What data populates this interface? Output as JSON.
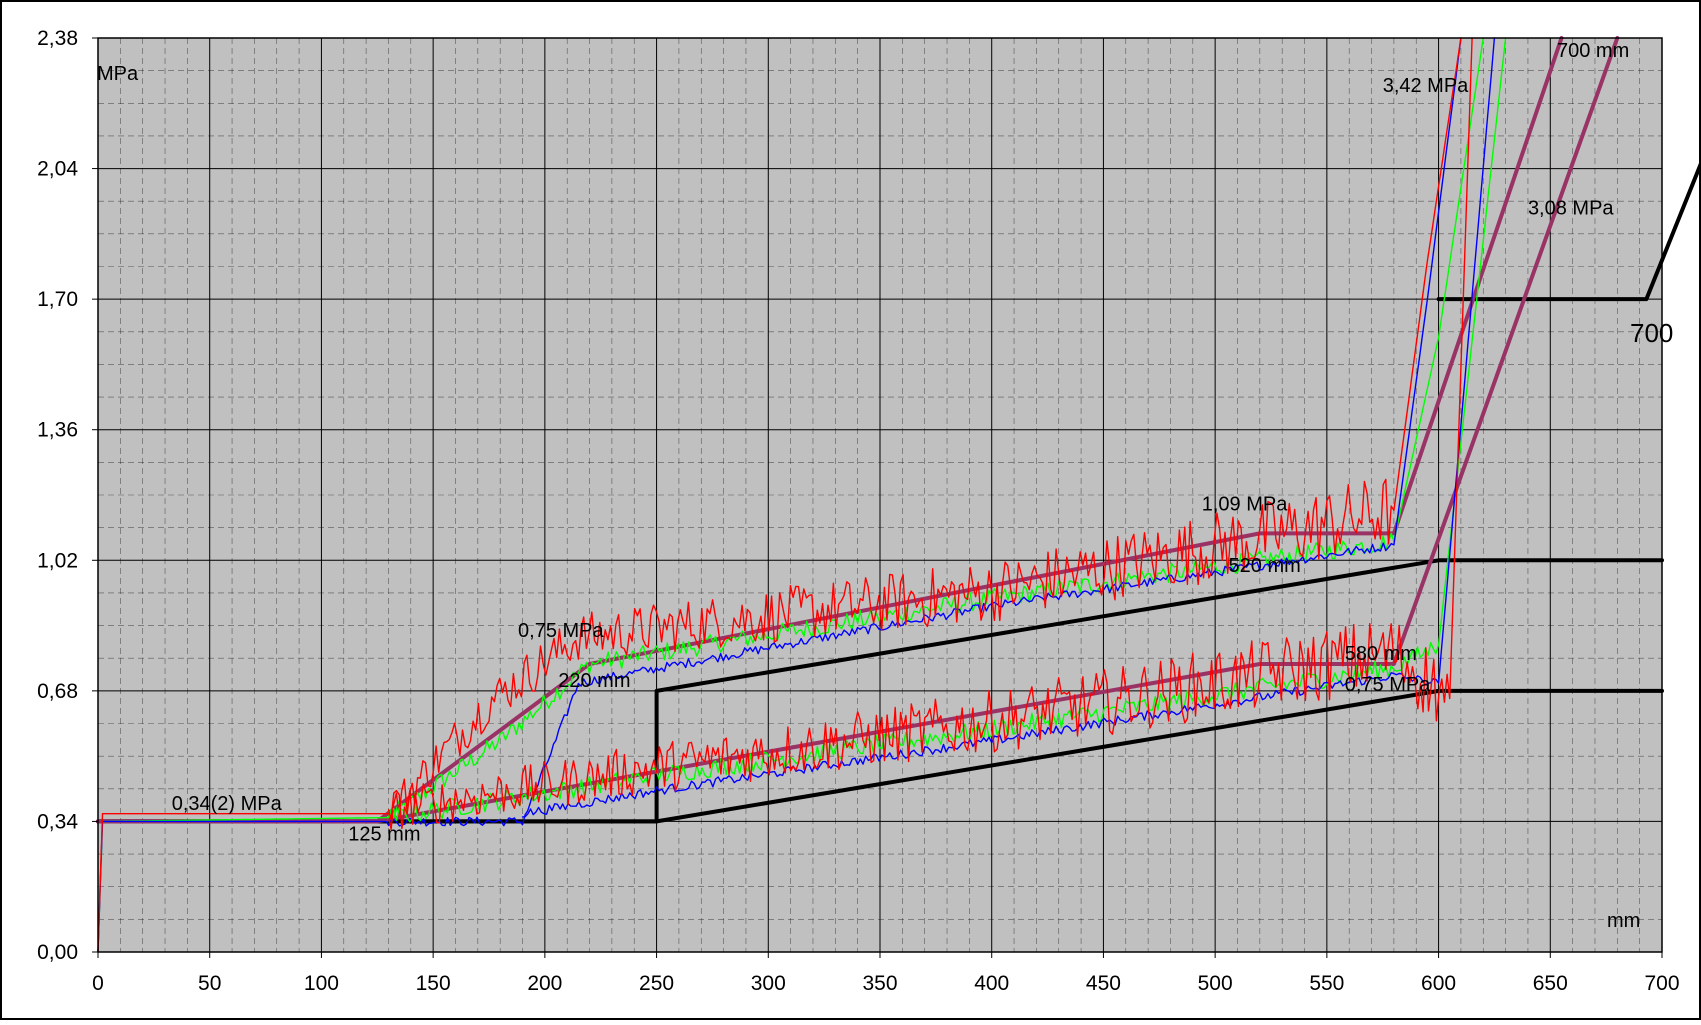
{
  "chart_data": {
    "type": "line",
    "title": "",
    "xlabel": "mm",
    "ylabel": "MPa",
    "xlim": [
      0,
      700
    ],
    "ylim": [
      0,
      2.38
    ],
    "x_ticks": [
      0,
      50,
      100,
      150,
      200,
      250,
      300,
      350,
      400,
      450,
      500,
      550,
      600,
      650,
      700
    ],
    "x_tick_labels": [
      "0",
      "50",
      "100",
      "150",
      "200",
      "250",
      "300",
      "350",
      "400",
      "450",
      "500",
      "550",
      "600",
      "650",
      "700"
    ],
    "y_ticks": [
      0,
      0.34,
      0.68,
      1.02,
      1.36,
      1.7,
      2.04,
      2.38
    ],
    "y_tick_labels": [
      "0,00",
      "0,34",
      "0,68",
      "1,02",
      "1,36",
      "1,70",
      "2,04",
      "2,38"
    ],
    "grid": true,
    "plot_background": "#c0c0c0",
    "series": [
      {
        "color": "#000000",
        "x": [
          0,
          250,
          250,
          600,
          700
        ],
        "y": [
          0.34,
          0.34,
          0.68,
          1.02,
          1.02
        ]
      },
      {
        "color": "#000000",
        "x": [
          0,
          250,
          600,
          700
        ],
        "y": [
          0.34,
          0.34,
          0.68,
          0.68
        ]
      },
      {
        "color": "#000000",
        "x": [
          600,
          693,
          740
        ],
        "y": [
          1.7,
          1.7,
          2.38
        ]
      },
      {
        "color": "#993366",
        "x": [
          0,
          125,
          220,
          520,
          580,
          655
        ],
        "y": [
          0.34,
          0.34,
          0.75,
          1.09,
          1.09,
          2.38
        ]
      },
      {
        "color": "#993366",
        "x": [
          0,
          125,
          520,
          580,
          680
        ],
        "y": [
          0.34,
          0.34,
          0.75,
          0.75,
          2.38
        ]
      },
      {
        "color": "#00ff00",
        "x": [
          0,
          2,
          130,
          180,
          220,
          400,
          580,
          600,
          620
        ],
        "y": [
          0.0,
          0.34,
          0.35,
          0.55,
          0.75,
          0.92,
          1.07,
          1.6,
          2.38
        ]
      },
      {
        "color": "#0000ff",
        "x": [
          0,
          2,
          190,
          205,
          215,
          400,
          580,
          595,
          610
        ],
        "y": [
          0.0,
          0.34,
          0.34,
          0.55,
          0.7,
          0.9,
          1.06,
          1.7,
          2.38
        ]
      },
      {
        "color": "#ff0000",
        "x": [
          0,
          2,
          130,
          175,
          215,
          400,
          580,
          595,
          610
        ],
        "y": [
          0.0,
          0.36,
          0.36,
          0.65,
          0.82,
          0.94,
          1.15,
          1.8,
          2.38
        ]
      },
      {
        "color": "#00ff00",
        "x": [
          130,
          250,
          400,
          580,
          600,
          630
        ],
        "y": [
          0.35,
          0.46,
          0.58,
          0.74,
          0.8,
          2.38
        ]
      },
      {
        "color": "#0000ff",
        "x": [
          190,
          250,
          400,
          580,
          600,
          625
        ],
        "y": [
          0.36,
          0.42,
          0.55,
          0.72,
          0.7,
          2.38
        ]
      },
      {
        "color": "#ff0000",
        "x": [
          130,
          250,
          400,
          580,
          605,
          615
        ],
        "y": [
          0.37,
          0.48,
          0.6,
          0.78,
          0.66,
          2.38
        ]
      }
    ],
    "annotations": [
      {
        "text": "0,34(2) MPa",
        "x": 33,
        "y": 0.37
      },
      {
        "text": "125 mm",
        "x": 112,
        "y": 0.29
      },
      {
        "text": "0,75 MPa",
        "x": 188,
        "y": 0.82
      },
      {
        "text": "220 mm",
        "x": 206,
        "y": 0.69
      },
      {
        "text": "1,09 MPa",
        "x": 494,
        "y": 1.15
      },
      {
        "text": "520 mm",
        "x": 506,
        "y": 0.99
      },
      {
        "text": "580 mm",
        "x": 558,
        "y": 0.76
      },
      {
        "text": "0,75 MPa",
        "x": 558,
        "y": 0.68
      },
      {
        "text": "3,42 MPa",
        "x": 575,
        "y": 2.24
      },
      {
        "text": "3,08 MPa",
        "x": 640,
        "y": 1.92
      },
      {
        "text": "700 mm",
        "x": 653,
        "y": 2.33
      }
    ],
    "outside_label": "700"
  }
}
